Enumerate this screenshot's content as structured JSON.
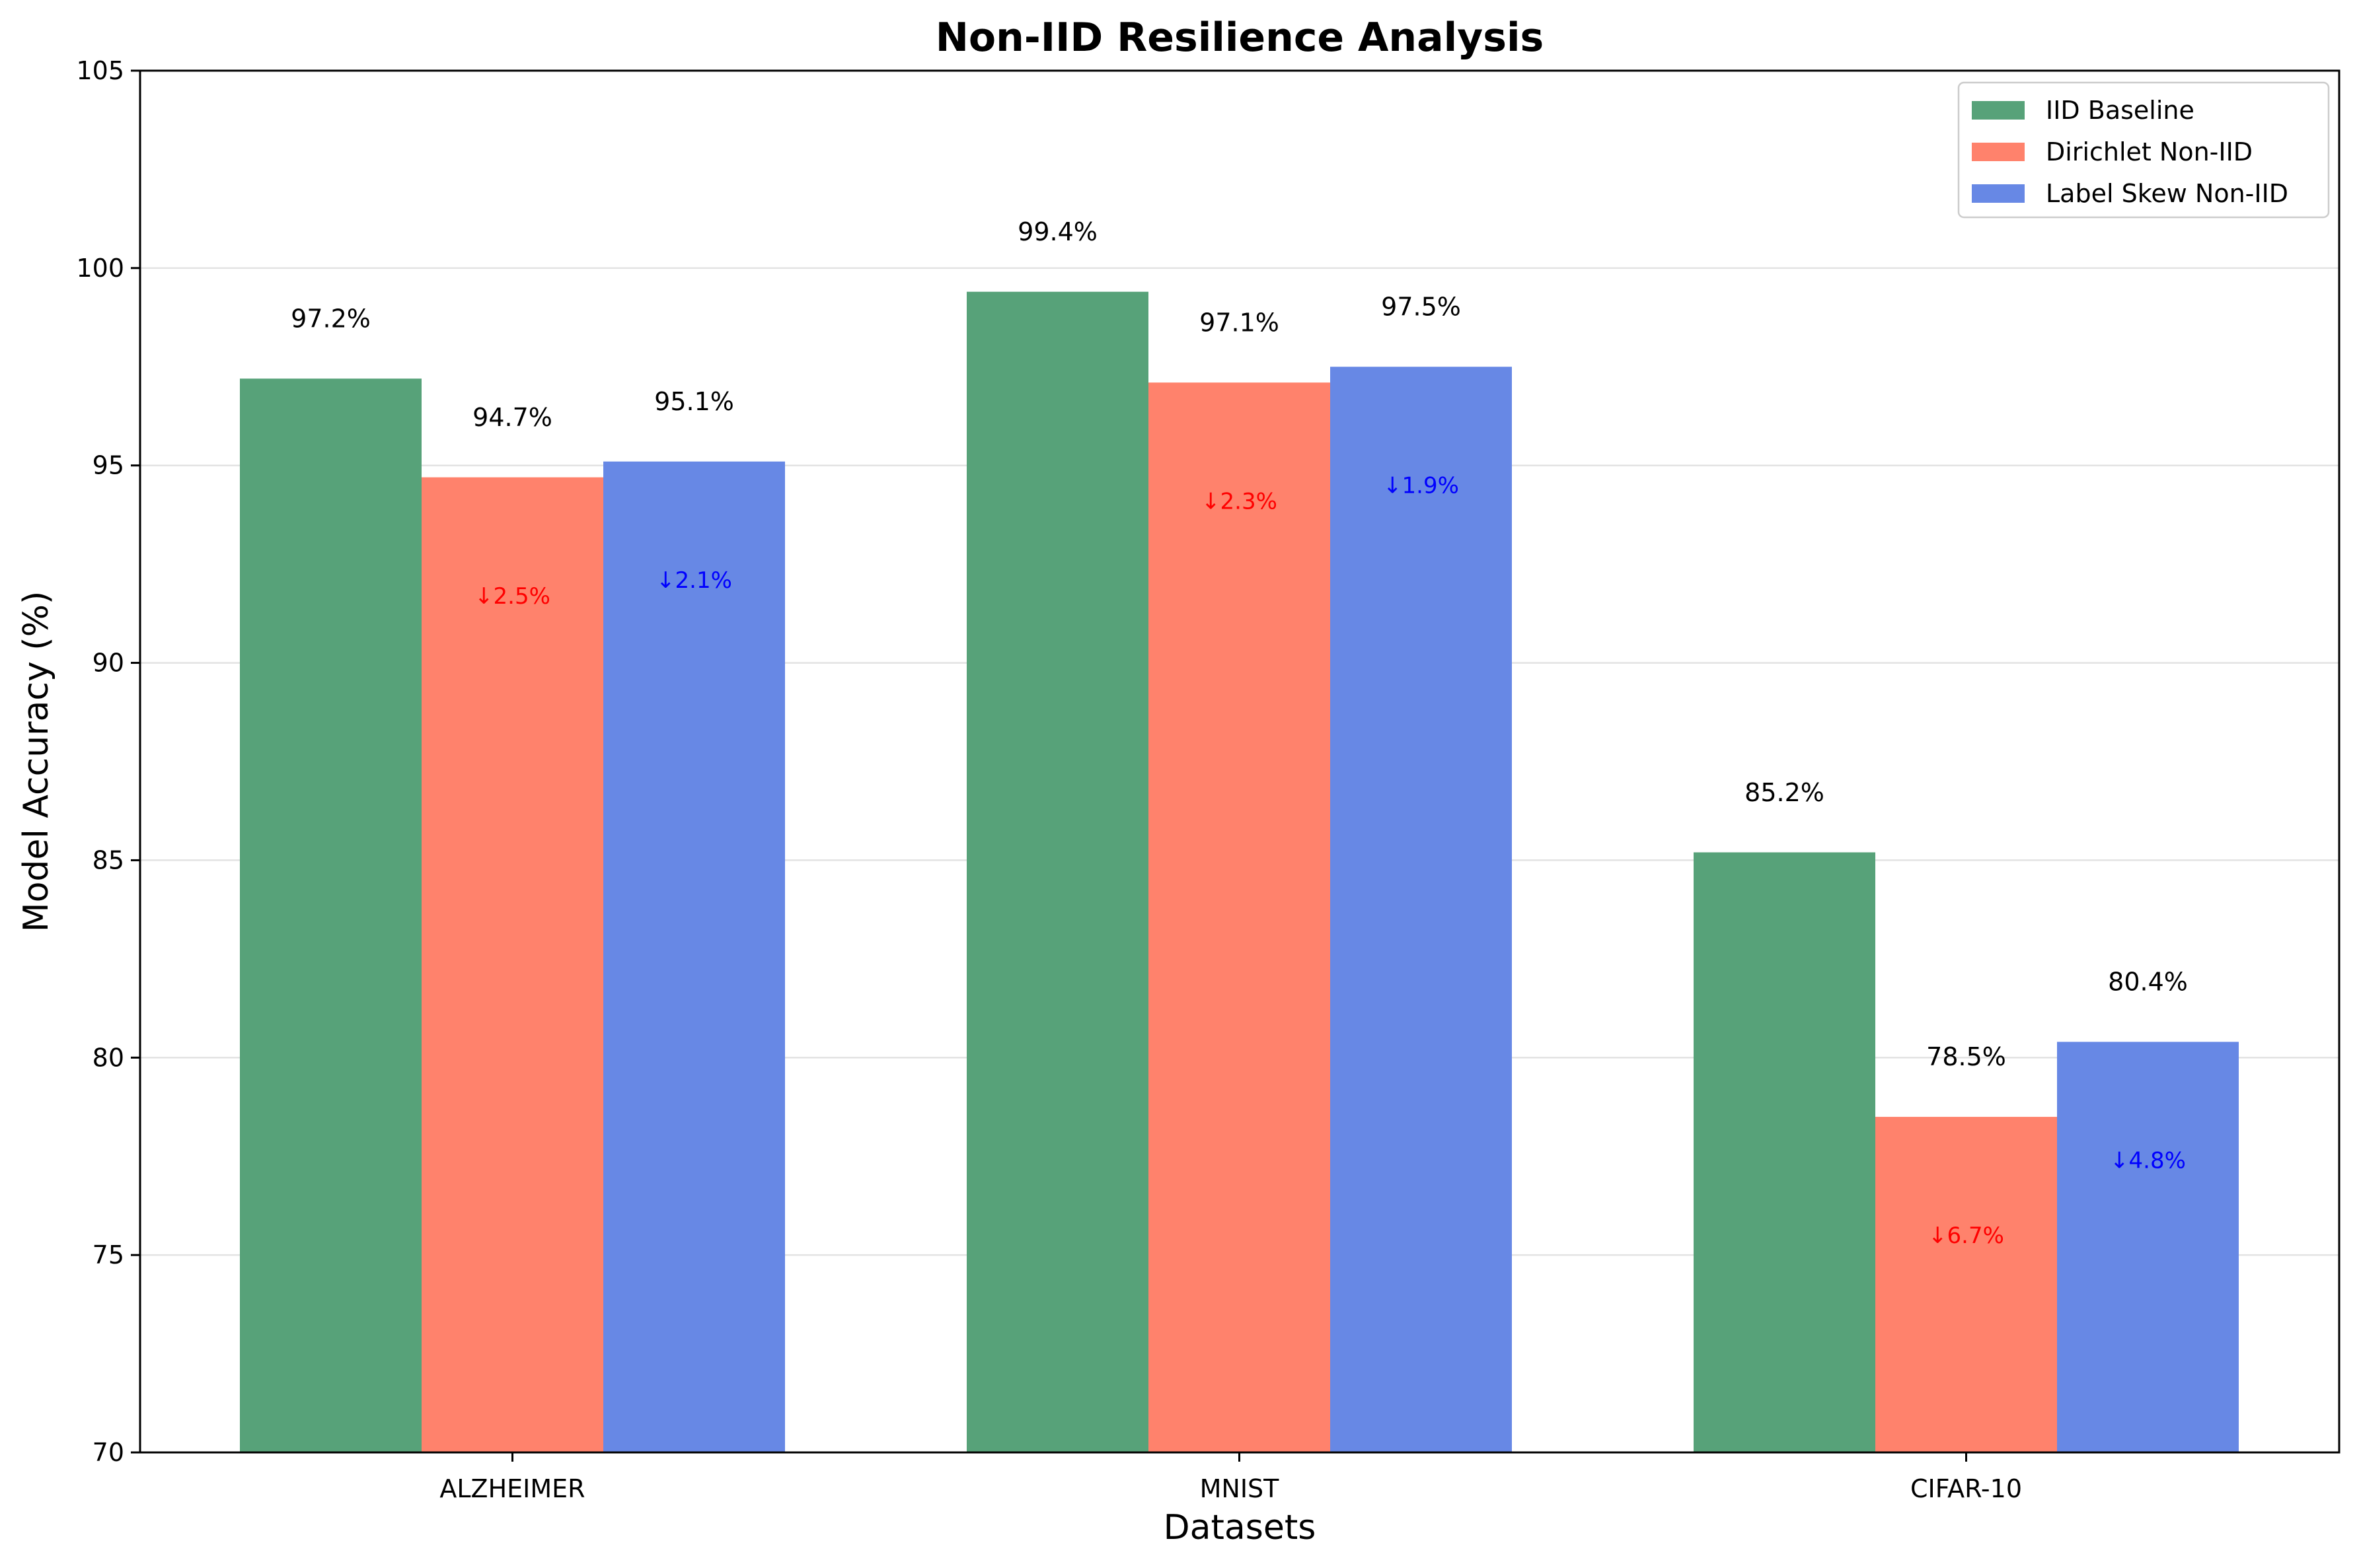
{
  "chart_data": {
    "type": "bar",
    "title": "Non-IID Resilience Analysis",
    "xlabel": "Datasets",
    "ylabel": "Model Accuracy (%)",
    "categories": [
      "ALZHEIMER",
      "MNIST",
      "CIFAR-10"
    ],
    "ylim": [
      70,
      105
    ],
    "yticks": [
      70,
      75,
      80,
      85,
      90,
      95,
      100,
      105
    ],
    "grid": "horizontal",
    "legend_position": "top-right",
    "series": [
      {
        "name": "IID Baseline",
        "color": "#57a279",
        "values": [
          97.2,
          99.4,
          85.2
        ],
        "value_labels": [
          "97.2%",
          "99.4%",
          "85.2%"
        ],
        "drop_labels": null,
        "drop_color": null
      },
      {
        "name": "Dirichlet Non-IID",
        "color": "#ff826c",
        "values": [
          94.7,
          97.1,
          78.5
        ],
        "value_labels": [
          "94.7%",
          "97.1%",
          "78.5%"
        ],
        "drop_labels": [
          "↓2.5%",
          "↓2.3%",
          "↓6.7%"
        ],
        "drop_color": "#ff0000"
      },
      {
        "name": "Label Skew Non-IID",
        "color": "#6788e5",
        "values": [
          95.1,
          97.5,
          80.4
        ],
        "value_labels": [
          "95.1%",
          "97.5%",
          "80.4%"
        ],
        "drop_labels": [
          "↓2.1%",
          "↓1.9%",
          "↓4.8%"
        ],
        "drop_color": "#0000ff"
      }
    ]
  }
}
